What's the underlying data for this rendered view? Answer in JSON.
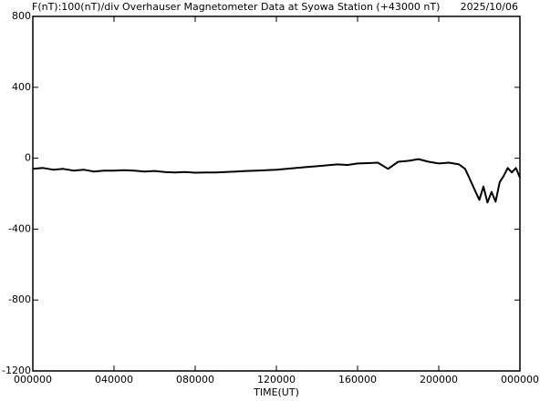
{
  "chart_data": {
    "type": "line",
    "header_left": "F(nT):100(nT)/div",
    "title": "Overhauser Magnetometer Data at Syowa Station (+43000 nT)",
    "date": "2025/10/06",
    "x_label": "TIME(UT)",
    "xlim": [
      0,
      24
    ],
    "xticks": [
      {
        "value": 0,
        "label": "000000"
      },
      {
        "value": 4,
        "label": "040000"
      },
      {
        "value": 8,
        "label": "080000"
      },
      {
        "value": 12,
        "label": "120000"
      },
      {
        "value": 16,
        "label": "160000"
      },
      {
        "value": 20,
        "label": "200000"
      },
      {
        "value": 24,
        "label": "000000"
      }
    ],
    "ylim": [
      -1200,
      800
    ],
    "yticks": [
      -1200,
      -800,
      -400,
      0,
      400,
      800
    ],
    "series": [
      {
        "color": "#000000",
        "x": [
          0,
          0.5,
          1,
          1.5,
          2,
          2.5,
          3,
          3.5,
          4,
          4.5,
          5,
          5.5,
          6,
          6.5,
          7,
          7.5,
          8,
          8.5,
          9,
          9.5,
          10,
          10.5,
          11,
          11.5,
          12,
          12.5,
          13,
          13.5,
          14,
          14.5,
          15,
          15.5,
          16,
          16.5,
          17,
          17.5,
          18,
          18.5,
          19,
          19.5,
          20,
          20.5,
          21,
          21.3,
          21.5,
          21.8,
          22,
          22.2,
          22.4,
          22.6,
          22.8,
          23,
          23.2,
          23.4,
          23.6,
          23.8,
          24
        ],
        "values": [
          -60,
          -55,
          -65,
          -60,
          -70,
          -65,
          -75,
          -70,
          -70,
          -68,
          -70,
          -75,
          -72,
          -78,
          -80,
          -78,
          -82,
          -80,
          -80,
          -78,
          -75,
          -72,
          -70,
          -68,
          -65,
          -60,
          -55,
          -50,
          -45,
          -40,
          -35,
          -38,
          -30,
          -28,
          -25,
          -60,
          -20,
          -15,
          -5,
          -20,
          -30,
          -25,
          -35,
          -60,
          -110,
          -185,
          -235,
          -160,
          -250,
          -190,
          -245,
          -135,
          -100,
          -55,
          -80,
          -55,
          -110
        ]
      }
    ]
  }
}
